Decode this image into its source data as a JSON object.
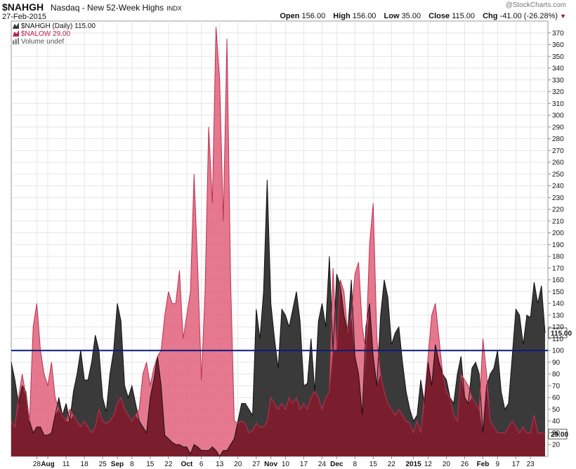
{
  "header": {
    "symbol": "$NAHGH",
    "name": "Nasdaq - New 52-Week Highs",
    "exchange": "INDX",
    "date": "27-Feb-2015",
    "credit": "@StockCharts.com",
    "open_label": "Open",
    "open": "156.00",
    "high_label": "High",
    "high": "156.00",
    "low_label": "Low",
    "low": "35.00",
    "close_label": "Close",
    "close": "115.00",
    "chg_label": "Chg",
    "chg": "-41.00 (-26.28%)"
  },
  "legend": {
    "primary": "$NAHGH (Daily) 115.00",
    "overlay": "$NALOW 29.00",
    "volume": "Volume undef"
  },
  "colors": {
    "highs_fill": "#3a3a3a",
    "lows_fill": "#e0607a",
    "lows_stroke": "#c03050",
    "overlap_fill": "#7a1e2e",
    "reference_line": "#0a1a7a",
    "grid": "#e6e6e6"
  },
  "chart_data": {
    "type": "area",
    "ylim": [
      10,
      380
    ],
    "yticks": [
      20,
      30,
      40,
      50,
      60,
      70,
      80,
      90,
      100,
      110,
      120,
      130,
      140,
      150,
      160,
      170,
      180,
      190,
      200,
      210,
      220,
      230,
      240,
      250,
      260,
      270,
      280,
      290,
      300,
      310,
      320,
      330,
      340,
      350,
      360,
      370
    ],
    "reference_line": 100,
    "x_labels": [
      {
        "i": 7,
        "label": "28"
      },
      {
        "i": 10,
        "label": "Aug",
        "bold": true
      },
      {
        "i": 15,
        "label": "11"
      },
      {
        "i": 20,
        "label": "18"
      },
      {
        "i": 25,
        "label": "25"
      },
      {
        "i": 29,
        "label": "Sep",
        "bold": true
      },
      {
        "i": 33,
        "label": "8"
      },
      {
        "i": 38,
        "label": "15"
      },
      {
        "i": 43,
        "label": "22"
      },
      {
        "i": 48,
        "label": "Oct",
        "bold": true
      },
      {
        "i": 52,
        "label": "6"
      },
      {
        "i": 57,
        "label": "13"
      },
      {
        "i": 62,
        "label": "20"
      },
      {
        "i": 67,
        "label": "27"
      },
      {
        "i": 71,
        "label": "Nov",
        "bold": true
      },
      {
        "i": 75,
        "label": "10"
      },
      {
        "i": 80,
        "label": "17"
      },
      {
        "i": 85,
        "label": "24"
      },
      {
        "i": 89,
        "label": "Dec",
        "bold": true
      },
      {
        "i": 94,
        "label": "8"
      },
      {
        "i": 99,
        "label": "15"
      },
      {
        "i": 104,
        "label": "22"
      },
      {
        "i": 110,
        "label": "2015",
        "bold": true
      },
      {
        "i": 114,
        "label": "12"
      },
      {
        "i": 119,
        "label": "20"
      },
      {
        "i": 124,
        "label": "26"
      },
      {
        "i": 129,
        "label": "Feb",
        "bold": true
      },
      {
        "i": 133,
        "label": "9"
      },
      {
        "i": 138,
        "label": "17"
      },
      {
        "i": 142,
        "label": "23"
      }
    ],
    "series": [
      {
        "name": "$NAHGH",
        "last": 115.0,
        "values": [
          90,
          75,
          55,
          70,
          65,
          40,
          30,
          35,
          35,
          28,
          28,
          30,
          45,
          60,
          45,
          55,
          40,
          65,
          80,
          100,
          75,
          75,
          90,
          113,
          100,
          60,
          48,
          80,
          100,
          140,
          125,
          70,
          60,
          70,
          55,
          40,
          35,
          30,
          60,
          75,
          95,
          70,
          28,
          25,
          22,
          20,
          20,
          18,
          18,
          12,
          20,
          18,
          15,
          15,
          15,
          18,
          15,
          10,
          15,
          15,
          20,
          25,
          40,
          55,
          55,
          50,
          45,
          135,
          110,
          150,
          245,
          140,
          110,
          85,
          135,
          130,
          120,
          135,
          150,
          125,
          70,
          72,
          110,
          65,
          125,
          140,
          120,
          180,
          100,
          165,
          155,
          130,
          115,
          160,
          95,
          80,
          45,
          120,
          140,
          95,
          70,
          130,
          160,
          145,
          105,
          115,
          120,
          90,
          65,
          50,
          40,
          45,
          75,
          55,
          90,
          70,
          105,
          90,
          80,
          75,
          60,
          55,
          80,
          95,
          60,
          55,
          85,
          90,
          80,
          30,
          70,
          80,
          85,
          100,
          65,
          50,
          55,
          95,
          135,
          130,
          105,
          130,
          128,
          158,
          140,
          155,
          115
        ]
      },
      {
        "name": "$NALOW",
        "last": 29.0,
        "values": [
          40,
          35,
          60,
          80,
          62,
          40,
          120,
          140,
          100,
          80,
          70,
          90,
          60,
          50,
          45,
          40,
          50,
          45,
          40,
          35,
          40,
          35,
          30,
          35,
          50,
          40,
          38,
          40,
          45,
          55,
          60,
          50,
          45,
          40,
          45,
          50,
          80,
          90,
          70,
          85,
          95,
          100,
          130,
          150,
          140,
          140,
          168,
          110,
          130,
          150,
          250,
          170,
          75,
          150,
          290,
          225,
          375,
          330,
          210,
          365,
          160,
          40,
          38,
          40,
          38,
          30,
          32,
          38,
          35,
          35,
          40,
          60,
          55,
          50,
          55,
          50,
          60,
          55,
          60,
          50,
          55,
          50,
          60,
          65,
          60,
          50,
          60,
          65,
          170,
          100,
          160,
          150,
          115,
          130,
          165,
          175,
          120,
          100,
          190,
          225,
          110,
          80,
          65,
          55,
          50,
          45,
          50,
          45,
          40,
          38,
          30,
          40,
          30,
          60,
          95,
          130,
          140,
          110,
          80,
          65,
          60,
          45,
          40,
          80,
          75,
          70,
          60,
          55,
          50,
          110,
          80,
          40,
          35,
          30,
          30,
          30,
          35,
          40,
          35,
          30,
          35,
          30,
          30,
          45,
          30,
          30,
          29
        ]
      }
    ]
  }
}
